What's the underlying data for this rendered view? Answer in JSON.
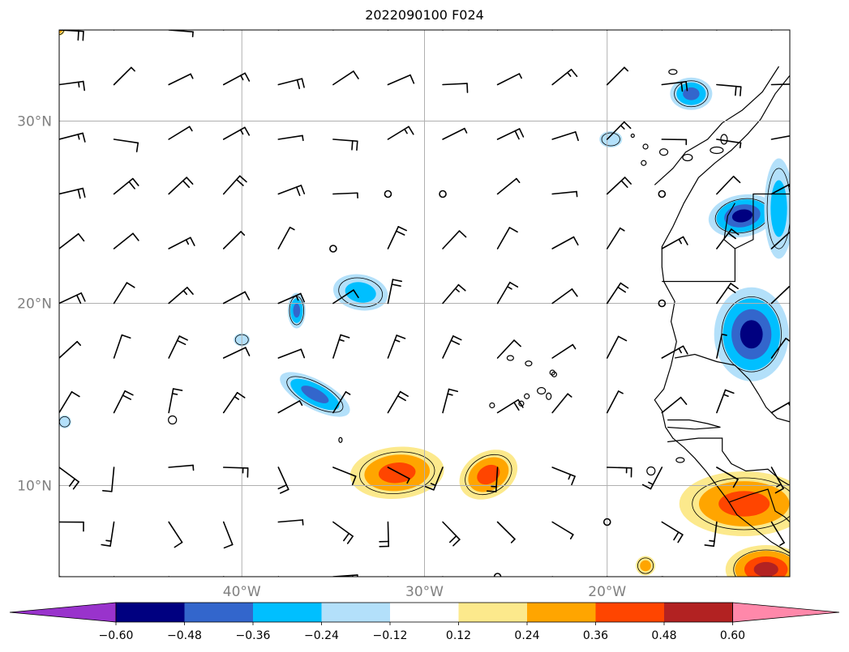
{
  "title": "2022090100 F024",
  "colors": {
    "coast": "#000000",
    "grid": "#b0b0b0",
    "axis_label": "#808080"
  },
  "lat_labels": [
    "30°N",
    "20°N",
    "10°N"
  ],
  "lon_labels": [
    "40°W",
    "30°W",
    "20°W"
  ],
  "colorbar": {
    "ticks": [
      "−0.60",
      "−0.48",
      "−0.36",
      "−0.24",
      "−0.12",
      "0.12",
      "0.24",
      "0.36",
      "0.48",
      "0.60"
    ],
    "colors": [
      "#9933cc",
      "#000080",
      "#3366cc",
      "#00bfff",
      "#b3e0fa",
      "#ffffff",
      "#fce98c",
      "#ffa500",
      "#ff4500",
      "#b22222",
      "#ff88aa"
    ]
  },
  "chart_data": {
    "type": "map",
    "title": "2022090100 F024",
    "extent": {
      "lon": [
        -50,
        -10
      ],
      "lat": [
        5,
        35
      ]
    },
    "gridlines": {
      "lon": [
        -40,
        -30,
        -20
      ],
      "lat": [
        10,
        20,
        30
      ]
    },
    "contour_levels": [
      -0.6,
      -0.48,
      -0.36,
      -0.24,
      -0.12,
      0.12,
      0.24,
      0.36,
      0.48,
      0.6
    ],
    "negative_anomalies": [
      {
        "lon": -33.5,
        "lat": 20.6,
        "min": -0.36
      },
      {
        "lon": -37.0,
        "lat": 19.6,
        "min": -0.36
      },
      {
        "lon": -36.0,
        "lat": 15.0,
        "min": -0.36
      },
      {
        "lon": -12.1,
        "lat": 18.3,
        "min": -0.6
      },
      {
        "lon": -12.6,
        "lat": 24.8,
        "min": -0.48
      },
      {
        "lon": -15.4,
        "lat": 31.5,
        "min": -0.36
      },
      {
        "lon": -10.5,
        "lat": 26.0,
        "min": -0.36
      }
    ],
    "positive_anomalies": [
      {
        "lon": -31.5,
        "lat": 10.7,
        "max": 0.36
      },
      {
        "lon": -26.5,
        "lat": 10.6,
        "max": 0.36
      },
      {
        "lon": -11.8,
        "lat": 9.2,
        "max": 0.48
      },
      {
        "lon": -11.4,
        "lat": 5.5,
        "max": 0.6
      },
      {
        "lon": -17.9,
        "lat": 5.6,
        "max": 0.24
      }
    ],
    "wind_barbs": "grid of wind barbs every 3 degrees"
  }
}
